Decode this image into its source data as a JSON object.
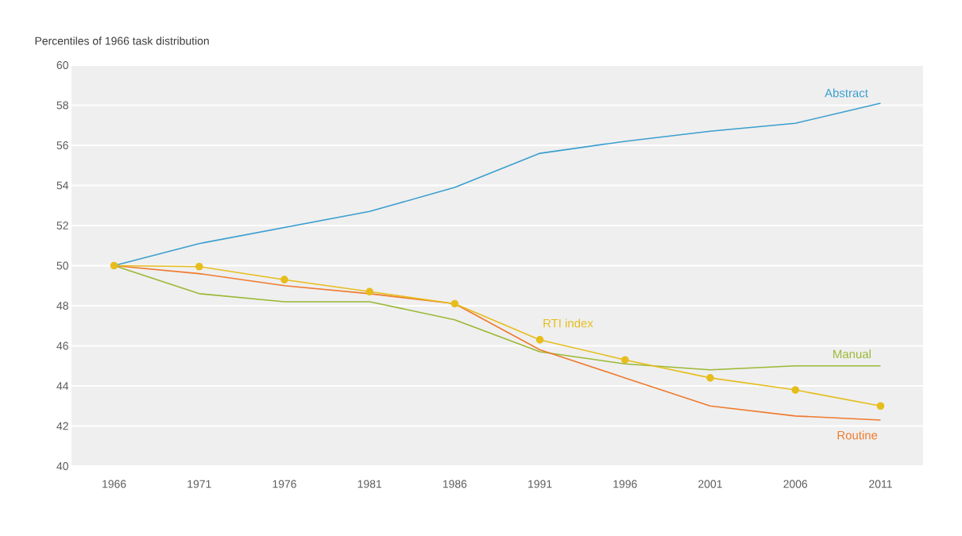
{
  "chart_data": {
    "type": "line",
    "ylabel": "Percentiles of 1966 task distribution",
    "categories": [
      "1966",
      "1971",
      "1976",
      "1981",
      "1986",
      "1991",
      "1996",
      "2001",
      "2006",
      "2011"
    ],
    "series": [
      {
        "name": "Abstract",
        "color": "#3a9fcf",
        "values": [
          50,
          51.1,
          51.9,
          52.7,
          53.9,
          55.6,
          56.2,
          56.7,
          57.1,
          58.1
        ]
      },
      {
        "name": "Manual",
        "color": "#9bb834",
        "values": [
          50,
          48.6,
          48.2,
          48.2,
          47.3,
          45.7,
          45.1,
          44.8,
          45.0,
          45.0
        ]
      },
      {
        "name": "Routine",
        "color": "#ef7a2e",
        "values": [
          50,
          49.6,
          49.0,
          48.6,
          48.1,
          45.8,
          44.4,
          43.0,
          42.5,
          42.3
        ]
      },
      {
        "name": "RTI index",
        "color": "#e6bd1c",
        "marker": "circle",
        "values": [
          50,
          49.95,
          49.3,
          48.7,
          48.1,
          46.3,
          45.3,
          44.4,
          43.8,
          43.0
        ]
      }
    ],
    "ylim": [
      40,
      60
    ],
    "yticks": [
      40,
      42,
      44,
      46,
      48,
      50,
      52,
      54,
      56,
      58,
      60
    ],
    "grid": "y",
    "legend": false
  }
}
